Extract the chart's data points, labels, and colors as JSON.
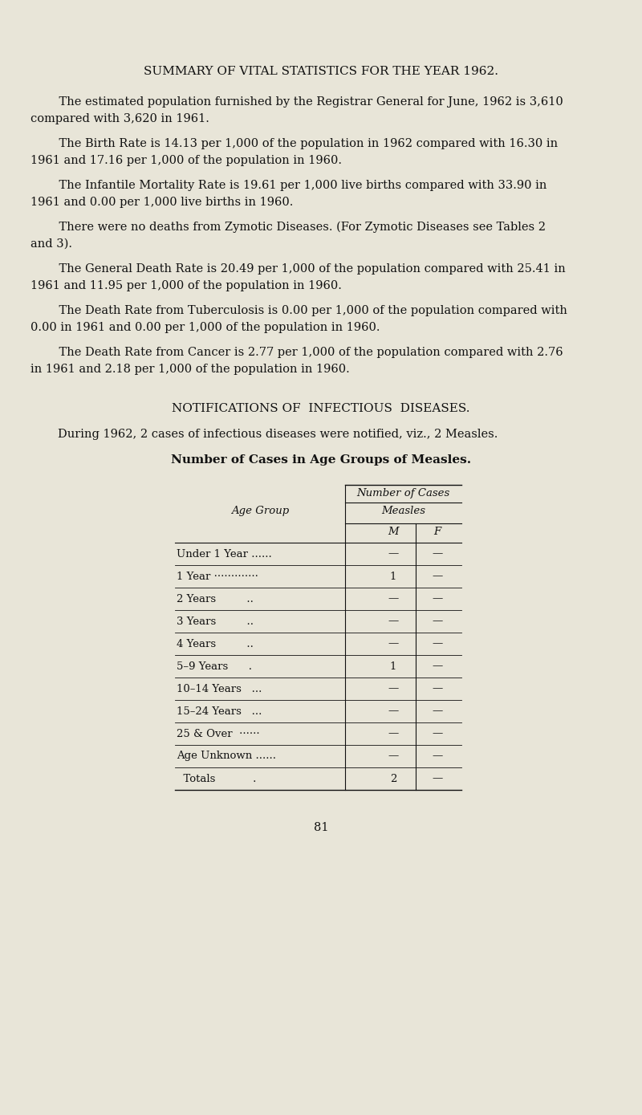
{
  "bg_color": "#e8e5d8",
  "title": "SUMMARY OF VITAL STATISTICS FOR THE YEAR 1962.",
  "paragraphs": [
    [
      "    The estimated population furnished by the Registrar General for June, 1962 is 3,610",
      "compared with 3,620 in 1961."
    ],
    [
      "    The Birth Rate is 14.13 per 1,000 of the population in 1962 compared with 16.30 in",
      "1961 and 17.16 per 1,000 of the population in 1960."
    ],
    [
      "    The Infantile Mortality Rate is 19.61 per 1,000 live births compared with 33.90 in",
      "1961 and 0.00 per 1,000 live births in 1960."
    ],
    [
      "    There were no deaths from Zymotic Diseases. (For Zymotic Diseases see Tables 2",
      "and 3)."
    ],
    [
      "    The General Death Rate is 20.49 per 1,000 of the population compared with 25.41 in",
      "1961 and 11.95 per 1,000 of the population in 1960."
    ],
    [
      "    The Death Rate from Tuberculosis is 0.00 per 1,000 of the population compared with",
      "0.00 in 1961 and 0.00 per 1,000 of the population in 1960."
    ],
    [
      "    The Death Rate from Cancer is 2.77 per 1,000 of the population compared with 2.76",
      "in 1961 and 2.18 per 1,000 of the population in 1960."
    ]
  ],
  "section_title": "NOTIFICATIONS OF  INFECTIOUS  DISEASES.",
  "during_text": "During 1962, 2 cases of infectious diseases were notified, viz., 2 Measles.",
  "table_title": "Number of Cases in Age Groups of Measles.",
  "table_header1": "Number of Cases",
  "table_header2": "Measles",
  "col_M": "M",
  "col_F": "F",
  "age_groups": [
    "Under 1 Year ......",
    "1 Year ·············",
    "2 Years         ..",
    "3 Years         ..",
    "4 Years         ..",
    "5–9 Years      .",
    "10–14 Years   ...",
    "15–24 Years   ...",
    "25 & Over  ······",
    "Age Unknown ......",
    "  Totals           ."
  ],
  "m_values": [
    "—",
    "1",
    "—",
    "—",
    "—",
    "1",
    "—",
    "—",
    "—",
    "—",
    "2"
  ],
  "f_values": [
    "—",
    "—",
    "—",
    "—",
    "—",
    "—",
    "—",
    "—",
    "—",
    "—",
    "—"
  ],
  "page_number": "81",
  "text_color": "#111111",
  "font_size_body": 10.5,
  "font_size_title": 11.0,
  "font_size_section": 11.0,
  "font_size_table": 9.5
}
